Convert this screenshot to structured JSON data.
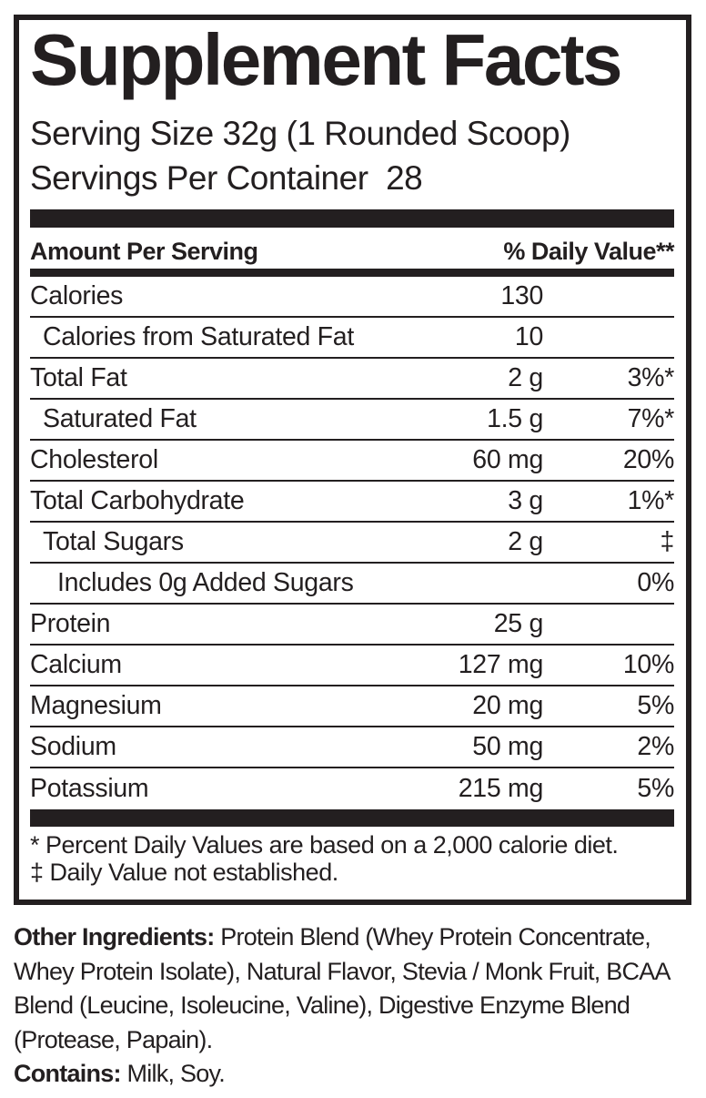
{
  "label": {
    "title": "Supplement Facts",
    "serving_size": "Serving Size 32g (1 Rounded Scoop)",
    "servings_per_container": "Servings Per Container  28",
    "header": {
      "left": "Amount Per Serving",
      "right": "% Daily Value**"
    },
    "rows": [
      {
        "name": "Calories",
        "amount": "130",
        "dv": "",
        "indent": 0
      },
      {
        "name": "Calories from Saturated Fat",
        "amount": "10",
        "dv": "",
        "indent": 1
      },
      {
        "name": "Total Fat",
        "amount": "2 g",
        "dv": "3%*",
        "indent": 0
      },
      {
        "name": "Saturated Fat",
        "amount": "1.5 g",
        "dv": "7%*",
        "indent": 1
      },
      {
        "name": "Cholesterol",
        "amount": "60 mg",
        "dv": "20%",
        "indent": 0
      },
      {
        "name": "Total Carbohydrate",
        "amount": "3 g",
        "dv": "1%*",
        "indent": 0
      },
      {
        "name": "Total Sugars",
        "amount": "2 g",
        "dv": "‡",
        "indent": 1
      },
      {
        "name": "Includes 0g Added Sugars",
        "amount": "",
        "dv": "0%",
        "indent": 2
      },
      {
        "name": "Protein",
        "amount": "25 g",
        "dv": "",
        "indent": 0
      },
      {
        "name": "Calcium",
        "amount": "127 mg",
        "dv": "10%",
        "indent": 0
      },
      {
        "name": "Magnesium",
        "amount": "20 mg",
        "dv": "5%",
        "indent": 0
      },
      {
        "name": "Sodium",
        "amount": "50 mg",
        "dv": "2%",
        "indent": 0
      },
      {
        "name": "Potassium",
        "amount": "215 mg",
        "dv": "5%",
        "indent": 0
      }
    ],
    "footnotes": [
      "* Percent Daily Values are based on a 2,000 calorie diet.",
      "‡ Daily Value not established."
    ]
  },
  "other_ingredients": {
    "label": "Other Ingredients:",
    "text": " Protein Blend (Whey Protein Concentrate, Whey Protein Isolate), Natural Flavor, Stevia / Monk Fruit, BCAA Blend (Leucine, Isoleucine, Valine), Digestive Enzyme Blend (Protease, Papain)."
  },
  "contains": {
    "label": "Contains:",
    "text": " Milk, Soy."
  },
  "colors": {
    "ink": "#231f20",
    "background": "#ffffff"
  }
}
